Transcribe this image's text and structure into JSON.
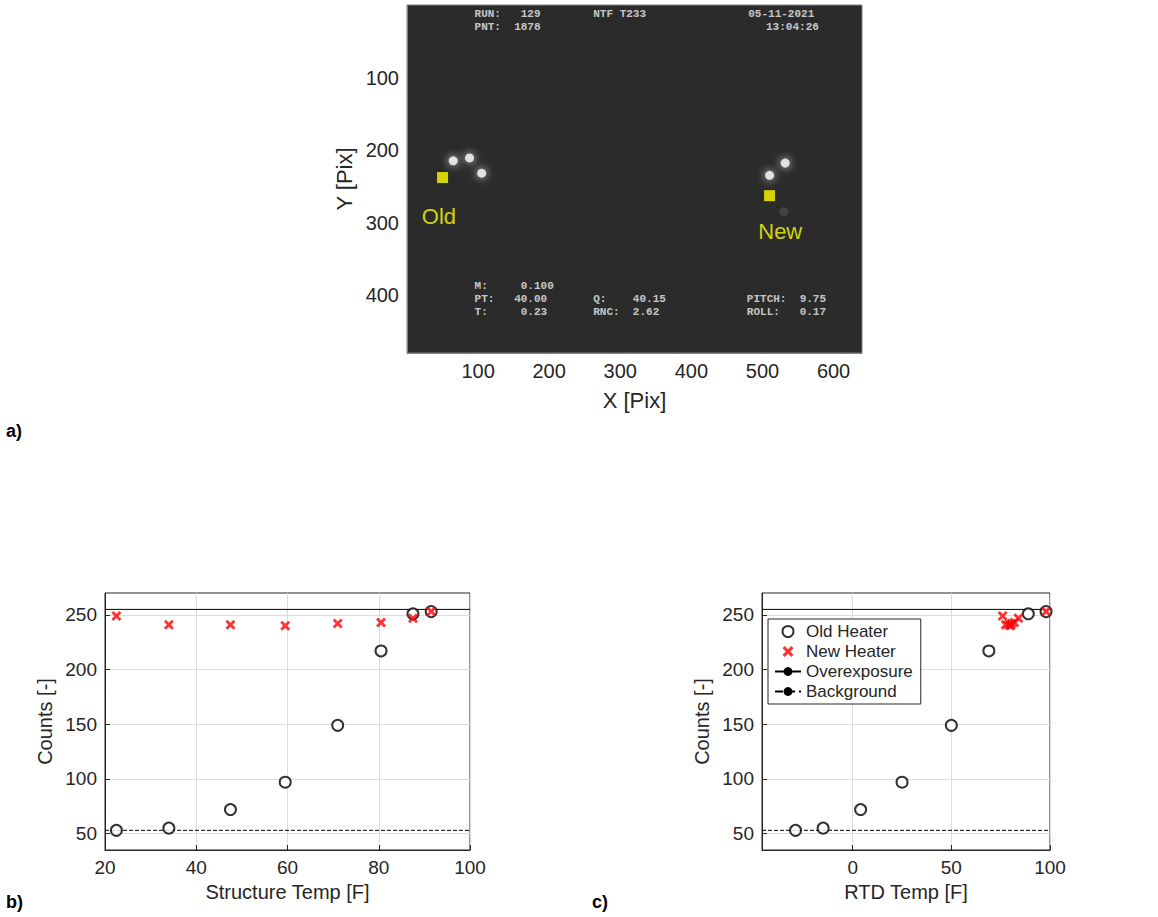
{
  "chart_data": [
    {
      "type": "image",
      "panel": "a)",
      "xlabel": "X [Pix]",
      "ylabel": "Y [Pix]",
      "xlim": [
        0,
        640
      ],
      "ylim": [
        480,
        0
      ],
      "xticks": [
        100,
        200,
        300,
        400,
        500,
        600
      ],
      "yticks": [
        100,
        200,
        300,
        400
      ],
      "grid": false,
      "series": [
        {
          "marker": "dot",
          "color": "#ffffff",
          "x": [
            65,
            88,
            105,
            510,
            532
          ],
          "values": [
            215,
            211,
            232,
            235,
            218
          ]
        },
        {
          "marker": "dot",
          "color": "#4a4a4a",
          "x": [
            530
          ],
          "values": [
            285
          ]
        },
        {
          "marker": "square",
          "color": "#ffff00",
          "x": [
            50,
            510
          ],
          "values": [
            238,
            263
          ]
        }
      ],
      "labels": [
        {
          "text": "Old",
          "x": 45,
          "y": 292,
          "color": "#ffff00"
        },
        {
          "text": "New",
          "x": 525,
          "y": 312,
          "color": "#ffff00"
        }
      ],
      "overlay": [
        {
          "text": "RUN:   129",
          "x": 95,
          "y": 12
        },
        {
          "text": "PNT:  1878",
          "x": 95,
          "y": 30
        },
        {
          "text": "NTF T233",
          "x": 262,
          "y": 12
        },
        {
          "text": "05-11-2021",
          "x": 480,
          "y": 12
        },
        {
          "text": "13:04:26",
          "x": 505,
          "y": 30
        },
        {
          "text": "M:     0.100",
          "x": 95,
          "y": 387
        },
        {
          "text": "PT:   40.00",
          "x": 95,
          "y": 405
        },
        {
          "text": "T:     0.23",
          "x": 95,
          "y": 423
        },
        {
          "text": "Q:    40.15",
          "x": 262,
          "y": 405
        },
        {
          "text": "RNC:  2.62",
          "x": 262,
          "y": 423
        },
        {
          "text": "PITCH:  9.75",
          "x": 478,
          "y": 405
        },
        {
          "text": "ROLL:   0.17",
          "x": 478,
          "y": 423
        }
      ]
    },
    {
      "type": "scatter",
      "panel": "b)",
      "xlabel": "Structure Temp [F]",
      "ylabel": "Counts [-]",
      "xlim": [
        20,
        100
      ],
      "xticks": [
        20,
        40,
        60,
        80,
        100
      ],
      "ylim": [
        35,
        270
      ],
      "yticks": [
        50,
        100,
        150,
        200,
        250
      ],
      "grid": true,
      "series": [
        {
          "name": "Old Heater",
          "type": "scatter",
          "marker": "circle",
          "color": "#000000",
          "x": [
            22.5,
            34,
            47.5,
            59.5,
            71,
            80.5,
            87.5,
            91.5
          ],
          "values": [
            53,
            55,
            72,
            97,
            149,
            217,
            251,
            253
          ]
        },
        {
          "name": "New Heater",
          "type": "scatter",
          "marker": "x",
          "color": "#ff0000",
          "x": [
            22.5,
            34,
            47.5,
            59.5,
            71,
            80.5,
            87.5,
            91.5
          ],
          "values": [
            249,
            241,
            241,
            240,
            242,
            243,
            247,
            253
          ]
        },
        {
          "name": "Overexposure",
          "type": "hline",
          "line_style": "solid",
          "color": "#000000",
          "values": [
            255
          ]
        },
        {
          "name": "Background",
          "type": "hline",
          "line_style": "dashed",
          "color": "#000000",
          "values": [
            53
          ]
        }
      ]
    },
    {
      "type": "scatter",
      "panel": "c)",
      "xlabel": "RTD Temp [F]",
      "ylabel": "Counts [-]",
      "xlim": [
        -46,
        100
      ],
      "xticks": [
        0,
        50,
        100
      ],
      "ylim": [
        35,
        270
      ],
      "yticks": [
        50,
        100,
        150,
        200,
        250
      ],
      "grid": true,
      "legend": "upper left",
      "series": [
        {
          "name": "Old Heater",
          "type": "scatter",
          "marker": "circle",
          "color": "#000000",
          "x": [
            -29,
            -15,
            4,
            25,
            50,
            69,
            89,
            98
          ],
          "values": [
            53,
            55,
            72,
            97,
            149,
            217,
            251,
            253
          ]
        },
        {
          "name": "New Heater",
          "type": "scatter",
          "marker": "x",
          "color": "#ff0000",
          "x": [
            76,
            77.5,
            79,
            80,
            80.5,
            82,
            84,
            98
          ],
          "values": [
            249,
            241,
            241,
            240,
            242,
            243,
            247,
            253
          ]
        },
        {
          "name": "Overexposure",
          "type": "hline",
          "line_style": "solid",
          "color": "#000000",
          "values": [
            255
          ]
        },
        {
          "name": "Background",
          "type": "hline",
          "line_style": "dashed",
          "color": "#000000",
          "values": [
            53
          ]
        }
      ]
    }
  ]
}
